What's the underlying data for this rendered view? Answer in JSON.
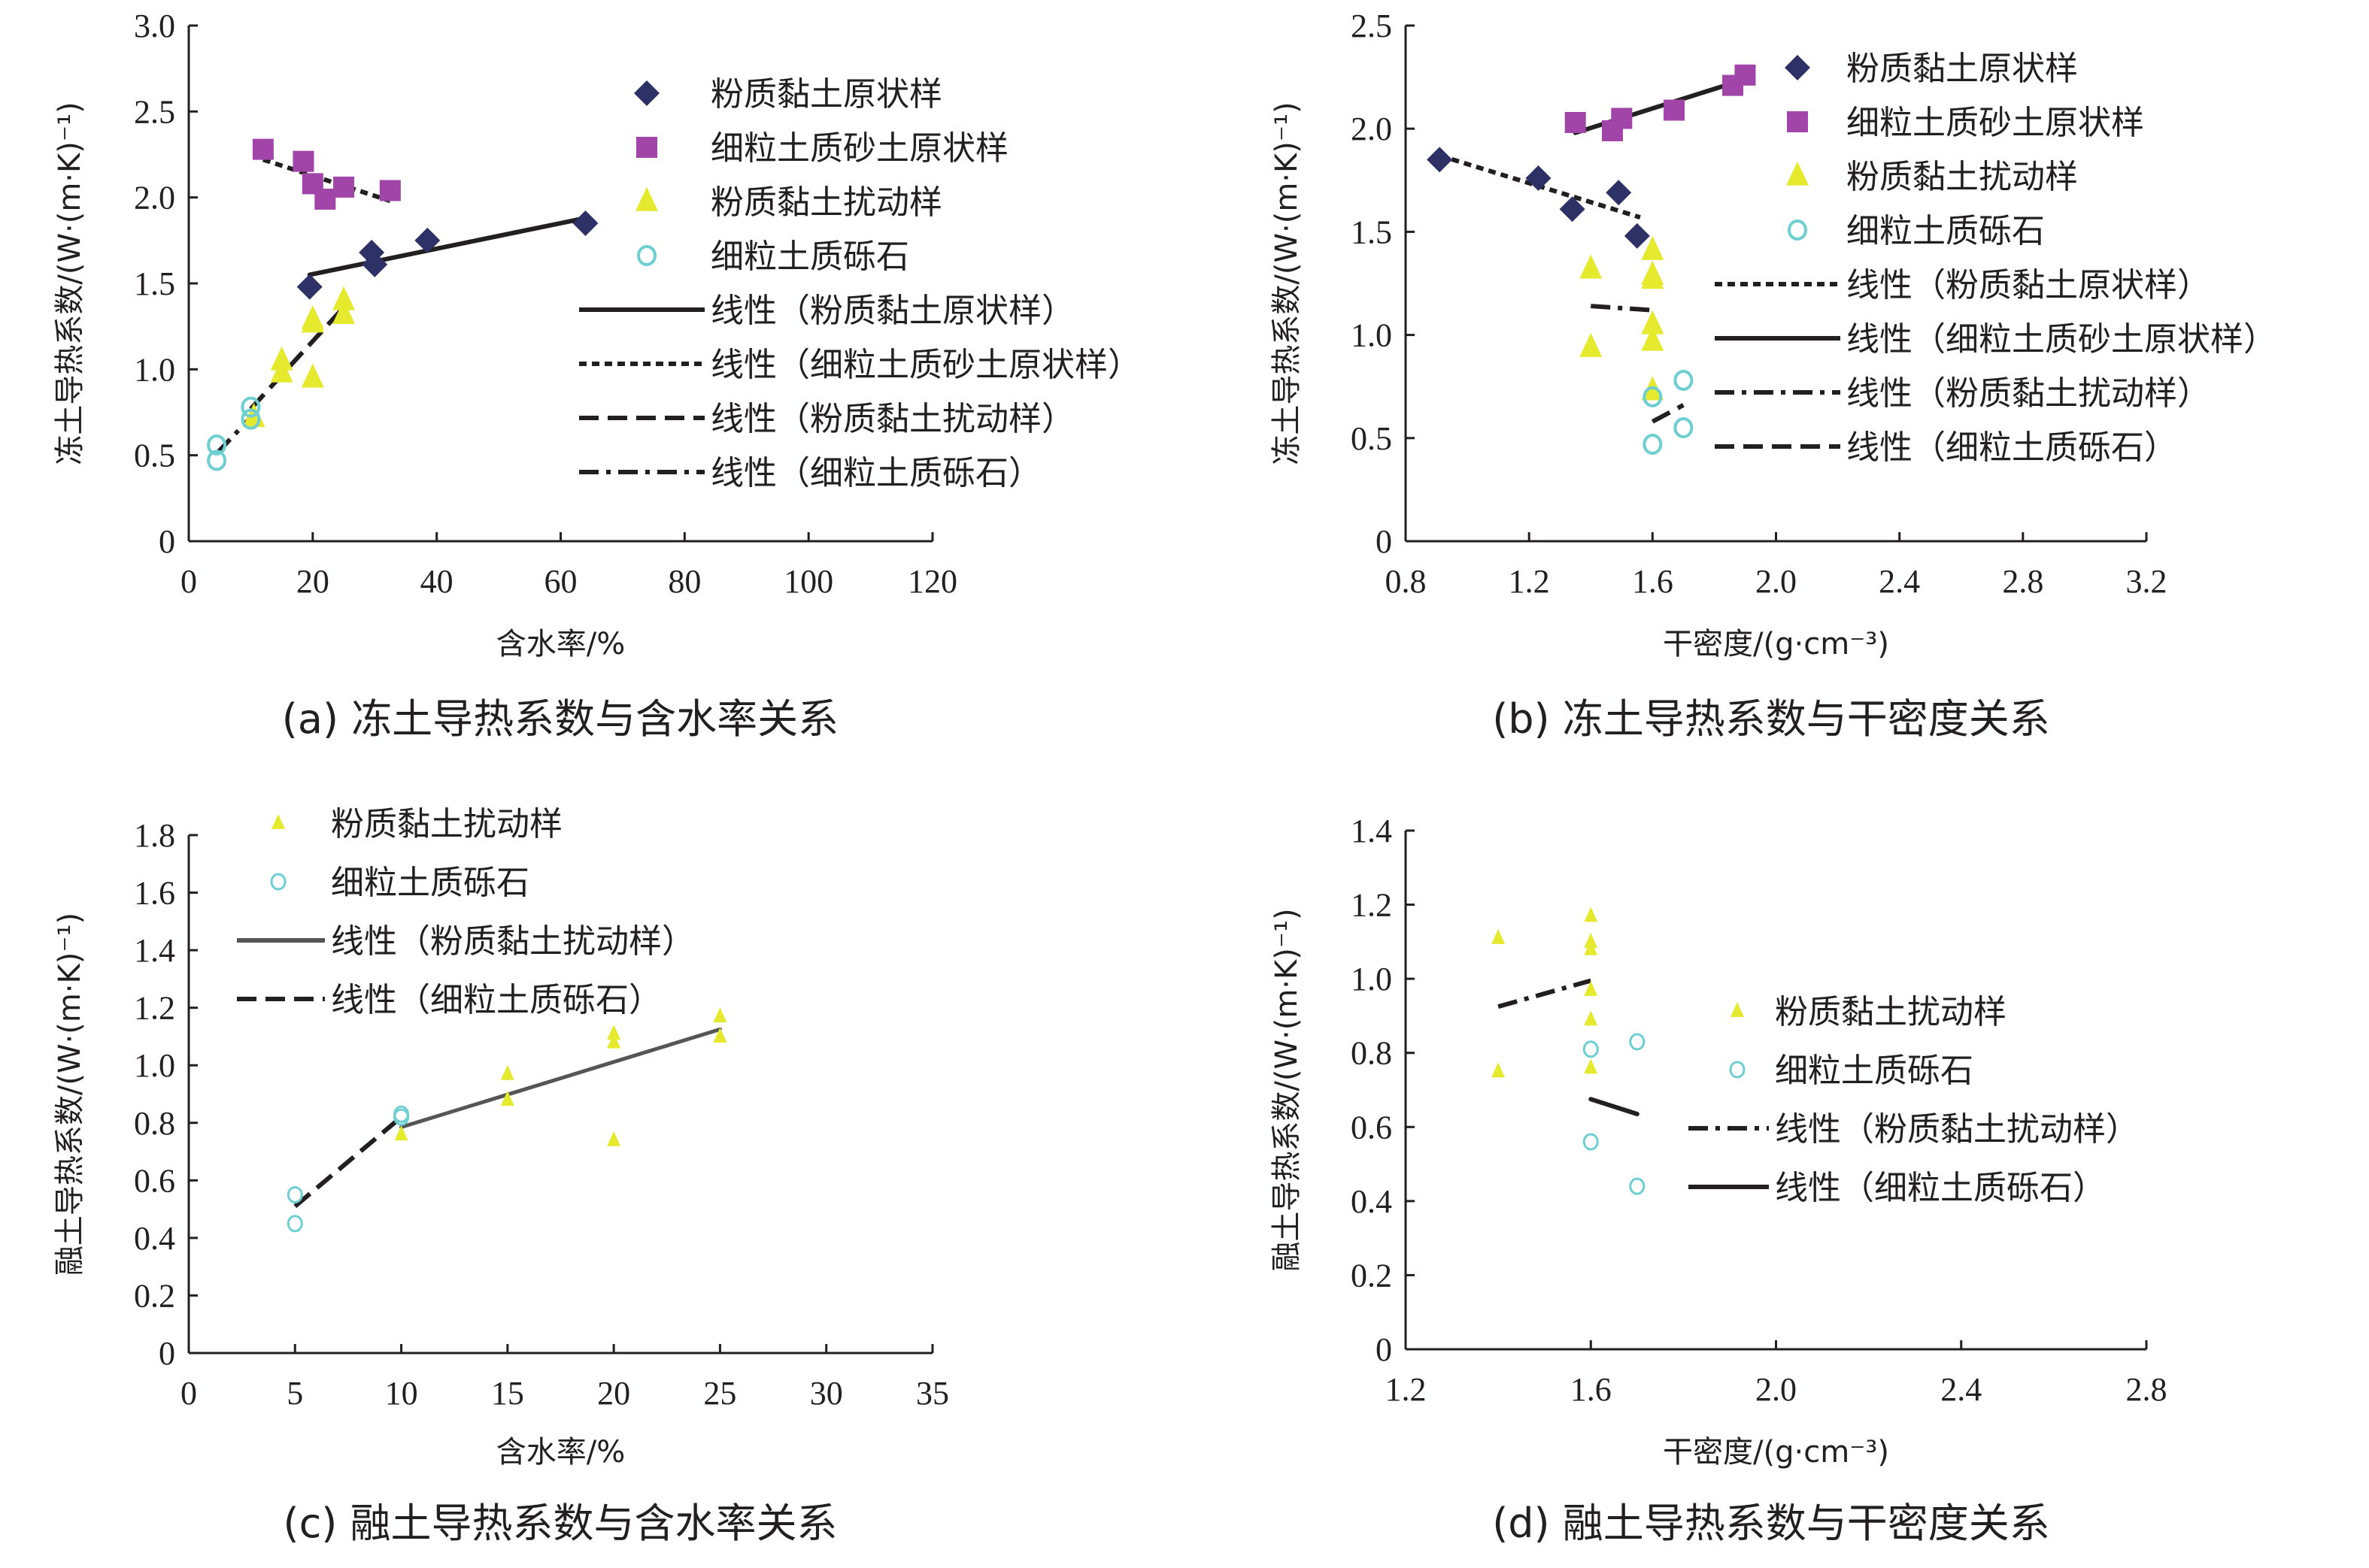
{
  "colors": {
    "silty_clay_undisturbed": "#2E3166",
    "fine_sand_undisturbed": "#A146A8",
    "silty_clay_disturbed": "#E6EA2E",
    "fine_gravel": "#6ECFD3",
    "line": "#231f20"
  },
  "chart_data": [
    {
      "id": "a",
      "type": "scatter",
      "caption": "(a) 冻土导热系数与含水率关系",
      "xlabel": "含水率/%",
      "ylabel": "冻土导热系数/(W·(m·K)⁻¹)",
      "xlim": [
        0,
        120
      ],
      "ylim": [
        0,
        3.0
      ],
      "xticks": [
        0,
        20,
        40,
        60,
        80,
        100,
        120
      ],
      "xtick_labels": [
        "0",
        "20",
        "40",
        "60",
        "80",
        "100",
        "120"
      ],
      "yticks": [
        0,
        0.5,
        1.0,
        1.5,
        2.0,
        2.5,
        3.0
      ],
      "ytick_labels": [
        "0",
        "0.5",
        "1.0",
        "1.5",
        "2.0",
        "2.5",
        "3.0"
      ],
      "legend_position": "top-right",
      "marker_size": "large",
      "series": [
        {
          "name": "粉质黏土原状样",
          "marker": "diamond",
          "color_key": "silty_clay_undisturbed",
          "points": [
            [
              19.5,
              1.48
            ],
            [
              29.5,
              1.68
            ],
            [
              30,
              1.61
            ],
            [
              38.5,
              1.75
            ],
            [
              64,
              1.85
            ]
          ]
        },
        {
          "name": "细粒土质砂土原状样",
          "marker": "square",
          "color_key": "fine_sand_undisturbed",
          "points": [
            [
              12,
              2.28
            ],
            [
              18.5,
              2.21
            ],
            [
              20,
              2.08
            ],
            [
              22,
              1.99
            ],
            [
              25,
              2.06
            ],
            [
              32.5,
              2.04
            ]
          ]
        },
        {
          "name": "粉质黏土扰动样",
          "marker": "triangle",
          "color_key": "silty_clay_disturbed",
          "points": [
            [
              10.5,
              0.72
            ],
            [
              15,
              1.05
            ],
            [
              15,
              0.98
            ],
            [
              20,
              1.29
            ],
            [
              20,
              1.27
            ],
            [
              20,
              0.95
            ],
            [
              25,
              1.4
            ],
            [
              25,
              1.32
            ]
          ]
        },
        {
          "name": "细粒土质砾石",
          "marker": "circle",
          "color_key": "fine_gravel",
          "points": [
            [
              4.5,
              0.56
            ],
            [
              4.5,
              0.47
            ],
            [
              10,
              0.78
            ],
            [
              10,
              0.71
            ]
          ]
        }
      ],
      "trendlines": [
        {
          "name": "线性（粉质黏土原状样）",
          "style": "solid",
          "from": [
            19.5,
            1.55
          ],
          "to": [
            64,
            1.88
          ]
        },
        {
          "name": "线性（细粒土质砂土原状样）",
          "style": "dotted",
          "from": [
            12,
            2.22
          ],
          "to": [
            32.5,
            1.98
          ]
        },
        {
          "name": "线性（粉质黏土扰动样）",
          "style": "dashed",
          "from": [
            10,
            0.77
          ],
          "to": [
            25.5,
            1.38
          ]
        },
        {
          "name": "线性（细粒土质砾石）",
          "style": "dashdot",
          "from": [
            4.5,
            0.51
          ],
          "to": [
            10,
            0.72
          ]
        }
      ]
    },
    {
      "id": "b",
      "type": "scatter",
      "caption": "(b) 冻土导热系数与干密度关系",
      "xlabel": "干密度/(g·cm⁻³)",
      "ylabel": "冻土导热系数/(W·(m·K)⁻¹)",
      "xlim": [
        0.8,
        3.2
      ],
      "ylim": [
        0,
        2.5
      ],
      "xticks": [
        0.8,
        1.2,
        1.6,
        2.0,
        2.4,
        2.8,
        3.2
      ],
      "xtick_labels": [
        "0.8",
        "1.2",
        "1.6",
        "2.0",
        "2.4",
        "2.8",
        "3.2"
      ],
      "yticks": [
        0,
        0.5,
        1.0,
        1.5,
        2.0,
        2.5
      ],
      "ytick_labels": [
        "0",
        "0.5",
        "1.0",
        "1.5",
        "2.0",
        "2.5"
      ],
      "legend_position": "top-right",
      "marker_size": "large",
      "series": [
        {
          "name": "粉质黏土原状样",
          "marker": "diamond",
          "color_key": "silty_clay_undisturbed",
          "points": [
            [
              0.91,
              1.85
            ],
            [
              1.23,
              1.76
            ],
            [
              1.34,
              1.61
            ],
            [
              1.49,
              1.69
            ],
            [
              1.55,
              1.48
            ]
          ]
        },
        {
          "name": "细粒土质砂土原状样",
          "marker": "square",
          "color_key": "fine_sand_undisturbed",
          "points": [
            [
              1.35,
              2.03
            ],
            [
              1.47,
              1.99
            ],
            [
              1.5,
              2.05
            ],
            [
              1.67,
              2.09
            ],
            [
              1.86,
              2.21
            ],
            [
              1.9,
              2.26
            ]
          ]
        },
        {
          "name": "粉质黏土扰动样",
          "marker": "triangle",
          "color_key": "silty_clay_disturbed",
          "points": [
            [
              1.4,
              1.32
            ],
            [
              1.4,
              0.94
            ],
            [
              1.6,
              1.41
            ],
            [
              1.6,
              1.29
            ],
            [
              1.6,
              1.27
            ],
            [
              1.6,
              1.05
            ],
            [
              1.6,
              0.97
            ],
            [
              1.6,
              0.73
            ]
          ]
        },
        {
          "name": "细粒土质砾石",
          "marker": "circle",
          "color_key": "fine_gravel",
          "points": [
            [
              1.6,
              0.7
            ],
            [
              1.6,
              0.47
            ],
            [
              1.7,
              0.78
            ],
            [
              1.7,
              0.55
            ]
          ]
        }
      ],
      "trendlines": [
        {
          "name": "线性（粉质黏土原状样）",
          "style": "dotted",
          "from": [
            0.91,
            1.87
          ],
          "to": [
            1.56,
            1.57
          ]
        },
        {
          "name": "线性（细粒土质砂土原状样）",
          "style": "solid",
          "from": [
            1.35,
            1.98
          ],
          "to": [
            1.9,
            2.24
          ]
        },
        {
          "name": "线性（粉质黏土扰动样）",
          "style": "dashdot",
          "from": [
            1.4,
            1.14
          ],
          "to": [
            1.6,
            1.12
          ]
        },
        {
          "name": "线性（细粒土质砾石）",
          "style": "dashed",
          "from": [
            1.6,
            0.58
          ],
          "to": [
            1.7,
            0.66
          ]
        }
      ]
    },
    {
      "id": "c",
      "type": "scatter",
      "caption": "(c) 融土导热系数与含水率关系",
      "xlabel": "含水率/%",
      "ylabel": "融土导热系数/(W·(m·K)⁻¹)",
      "xlim": [
        0,
        35
      ],
      "ylim": [
        0,
        1.8
      ],
      "xticks": [
        0,
        5,
        10,
        15,
        20,
        25,
        30,
        35
      ],
      "xtick_labels": [
        "0",
        "5",
        "10",
        "15",
        "20",
        "25",
        "30",
        "35"
      ],
      "yticks": [
        0,
        0.2,
        0.4,
        0.6,
        0.8,
        1.0,
        1.2,
        1.4,
        1.6,
        1.8
      ],
      "ytick_labels": [
        "0",
        "0.2",
        "0.4",
        "0.6",
        "0.8",
        "1.0",
        "1.2",
        "1.4",
        "1.6",
        "1.8"
      ],
      "legend_position": "top-left",
      "marker_size": "small",
      "series": [
        {
          "name": "粉质黏土扰动样",
          "marker": "triangle",
          "color_key": "silty_clay_disturbed",
          "points": [
            [
              10,
              0.76
            ],
            [
              15,
              0.97
            ],
            [
              15,
              0.88
            ],
            [
              20,
              1.11
            ],
            [
              20,
              1.08
            ],
            [
              20,
              0.74
            ],
            [
              25,
              1.17
            ],
            [
              25,
              1.1
            ]
          ]
        },
        {
          "name": "细粒土质砾石",
          "marker": "circle",
          "color_key": "fine_gravel",
          "points": [
            [
              5,
              0.55
            ],
            [
              5,
              0.45
            ],
            [
              10,
              0.83
            ],
            [
              10,
              0.82
            ]
          ]
        }
      ],
      "trendlines": [
        {
          "name": "线性（粉质黏土扰动样）",
          "style": "solid-gray",
          "from": [
            10,
            0.785
          ],
          "to": [
            25,
            1.125
          ]
        },
        {
          "name": "线性（细粒土质砾石）",
          "style": "dashed",
          "from": [
            5,
            0.51
          ],
          "to": [
            10,
            0.82
          ]
        }
      ]
    },
    {
      "id": "d",
      "type": "scatter",
      "caption": "(d) 融土导热系数与干密度关系",
      "xlabel": "干密度/(g·cm⁻³)",
      "ylabel": "融土导热系数/(W·(m·K)⁻¹)",
      "xlim": [
        1.2,
        2.8
      ],
      "ylim": [
        0,
        1.4
      ],
      "xticks": [
        1.2,
        1.6,
        2.0,
        2.4,
        2.8
      ],
      "xtick_labels": [
        "1.2",
        "1.6",
        "2.0",
        "2.4",
        "2.8"
      ],
      "yticks": [
        0,
        0.2,
        0.4,
        0.6,
        0.8,
        1.0,
        1.2,
        1.4
      ],
      "ytick_labels": [
        "0",
        "0.2",
        "0.4",
        "0.6",
        "0.8",
        "1.0",
        "1.2",
        "1.4"
      ],
      "legend_position": "center-right",
      "marker_size": "small",
      "series": [
        {
          "name": "粉质黏土扰动样",
          "marker": "triangle",
          "color_key": "silty_clay_disturbed",
          "points": [
            [
              1.4,
              1.11
            ],
            [
              1.4,
              0.75
            ],
            [
              1.6,
              1.17
            ],
            [
              1.6,
              1.1
            ],
            [
              1.6,
              1.08
            ],
            [
              1.6,
              0.97
            ],
            [
              1.6,
              0.89
            ],
            [
              1.6,
              0.76
            ]
          ]
        },
        {
          "name": "细粒土质砾石",
          "marker": "circle",
          "color_key": "fine_gravel",
          "points": [
            [
              1.6,
              0.81
            ],
            [
              1.6,
              0.56
            ],
            [
              1.7,
              0.83
            ],
            [
              1.7,
              0.44
            ]
          ]
        }
      ],
      "trendlines": [
        {
          "name": "线性（粉质黏土扰动样）",
          "style": "dashdot",
          "from": [
            1.4,
            0.925
          ],
          "to": [
            1.6,
            0.995
          ]
        },
        {
          "name": "线性（细粒土质砾石）",
          "style": "solid",
          "from": [
            1.6,
            0.675
          ],
          "to": [
            1.7,
            0.635
          ]
        }
      ]
    }
  ]
}
